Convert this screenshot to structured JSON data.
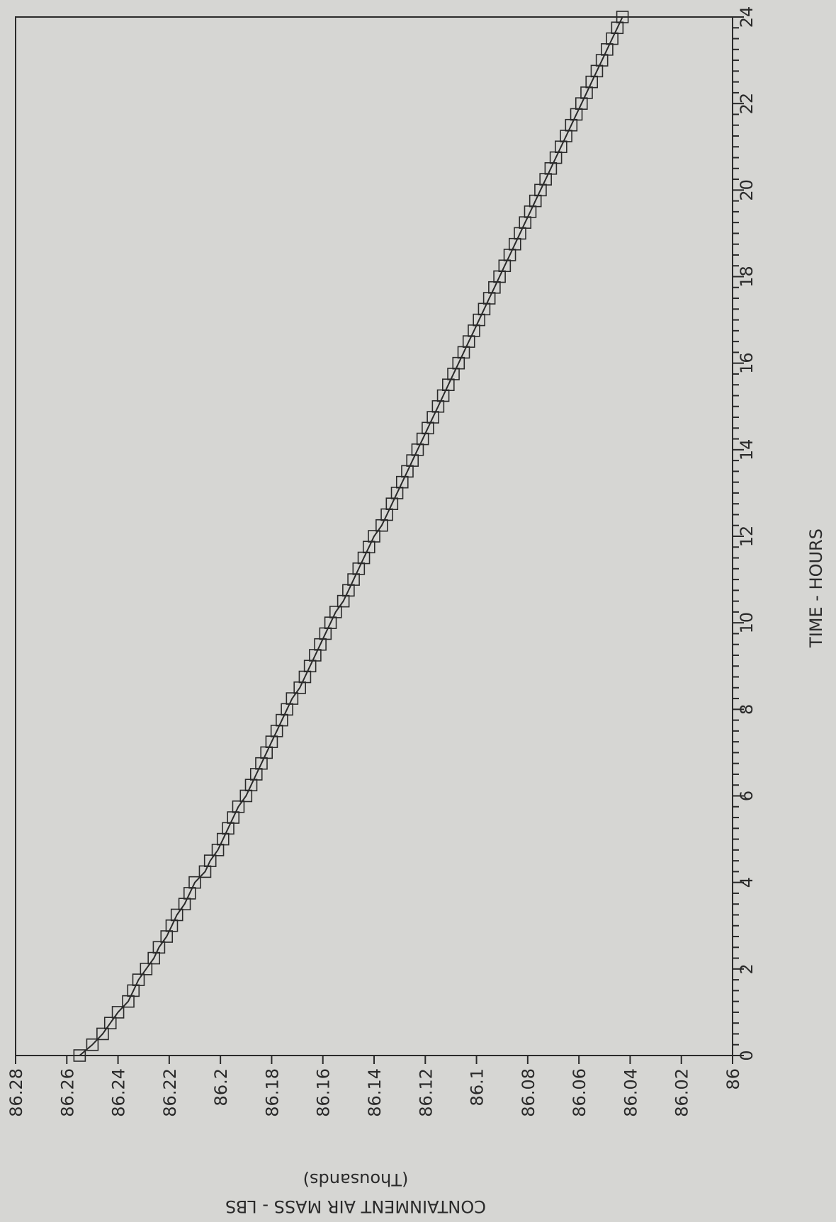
{
  "chart_data": {
    "type": "line",
    "orientation": "rotated-90-clockwise",
    "title": "",
    "xlabel": "TIME - HOURS",
    "ylabel": "CONTAINMENT AIR MASS - LBS",
    "ylabel_unit": "(Thousands)",
    "xlim": [
      0,
      24
    ],
    "ylim": [
      86,
      86.28
    ],
    "x_ticks": [
      0,
      2,
      4,
      6,
      8,
      10,
      12,
      14,
      16,
      18,
      20,
      22,
      24
    ],
    "y_ticks": [
      86.28,
      86.26,
      86.24,
      86.22,
      86.2,
      86.18,
      86.16,
      86.14,
      86.12,
      86.1,
      86.08,
      86.06,
      86.04,
      86.02,
      86
    ],
    "grid": false,
    "legend": "none",
    "marker": "square",
    "color": "#2a2a2a",
    "series": [
      {
        "x": [
          0,
          0.25,
          0.5,
          0.75,
          1,
          1.25,
          1.5,
          1.75,
          2,
          2.25,
          2.5,
          2.75,
          3,
          3.25,
          3.5,
          3.75,
          4,
          4.25,
          4.5,
          4.75,
          5,
          5.25,
          5.5,
          5.75,
          6,
          6.25,
          6.5,
          6.75,
          7,
          7.25,
          7.5,
          7.75,
          8,
          8.25,
          8.5,
          8.75,
          9,
          9.25,
          9.5,
          9.75,
          10,
          10.25,
          10.5,
          10.75,
          11,
          11.25,
          11.5,
          11.75,
          12,
          12.25,
          12.5,
          12.75,
          13,
          13.25,
          13.5,
          13.75,
          14,
          14.25,
          14.5,
          14.75,
          15,
          15.25,
          15.5,
          15.75,
          16,
          16.25,
          16.5,
          16.75,
          17,
          17.25,
          17.5,
          17.75,
          18,
          18.25,
          18.5,
          18.75,
          19,
          19.25,
          19.5,
          19.75,
          20,
          20.25,
          20.5,
          20.75,
          21,
          21.25,
          21.5,
          21.75,
          22,
          22.25,
          22.5,
          22.75,
          23,
          23.25,
          23.5,
          23.75,
          24
        ],
        "y": [
          86.255,
          86.25,
          86.246,
          86.243,
          86.24,
          86.236,
          86.234,
          86.232,
          86.229,
          86.226,
          86.224,
          86.221,
          86.219,
          86.217,
          86.214,
          86.212,
          86.21,
          86.206,
          86.204,
          86.201,
          86.199,
          86.197,
          86.195,
          86.193,
          86.19,
          86.188,
          86.186,
          86.184,
          86.182,
          86.18,
          86.178,
          86.176,
          86.174,
          86.172,
          86.169,
          86.167,
          86.165,
          86.163,
          86.161,
          86.159,
          86.157,
          86.155,
          86.152,
          86.15,
          86.148,
          86.146,
          86.144,
          86.142,
          86.14,
          86.137,
          86.135,
          86.133,
          86.131,
          86.129,
          86.127,
          86.125,
          86.123,
          86.121,
          86.119,
          86.117,
          86.115,
          86.113,
          86.111,
          86.109,
          86.107,
          86.105,
          86.103,
          86.101,
          86.099,
          86.097,
          86.095,
          86.093,
          86.091,
          86.089,
          86.087,
          86.085,
          86.083,
          86.081,
          86.079,
          86.077,
          86.075,
          86.073,
          86.071,
          86.069,
          86.067,
          86.065,
          86.063,
          86.061,
          86.059,
          86.057,
          86.055,
          86.053,
          86.051,
          86.049,
          86.047,
          86.045,
          86.043
        ]
      }
    ]
  }
}
